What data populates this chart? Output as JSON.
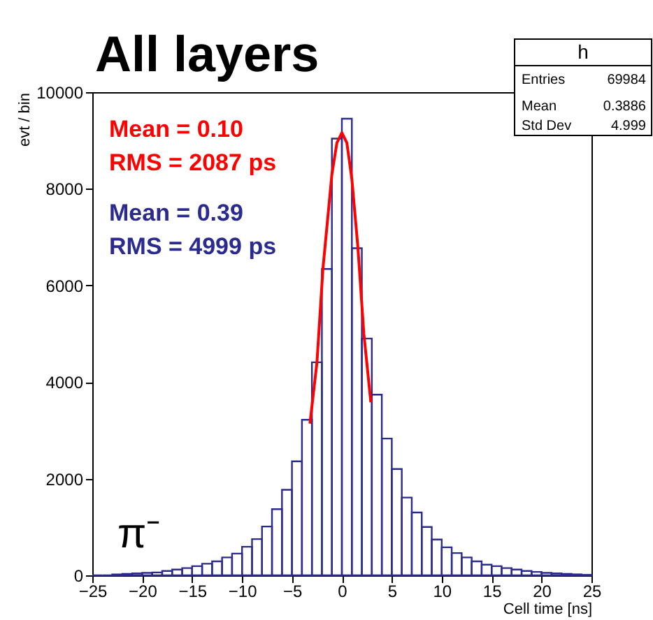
{
  "chart_data": {
    "type": "histogram",
    "title": "All layers",
    "xlabel": "Cell time [ns]",
    "ylabel": "evt / bin",
    "bins": [
      -25,
      -24,
      -23,
      -22,
      -21,
      -20,
      -19,
      -18,
      -17,
      -16,
      -15,
      -14,
      -13,
      -12,
      -11,
      -10,
      -9,
      -8,
      -7,
      -6,
      -5,
      -4,
      -3,
      -2,
      -1,
      0,
      1,
      2,
      3,
      4,
      5,
      6,
      7,
      8,
      9,
      10,
      11,
      12,
      13,
      14,
      15,
      16,
      17,
      18,
      19,
      20,
      21,
      22,
      23,
      24,
      25
    ],
    "series": [
      {
        "color": "#2b2b8f",
        "values": [
          0,
          0,
          20,
          30,
          40,
          50,
          60,
          90,
          120,
          150,
          190,
          240,
          290,
          370,
          450,
          590,
          750,
          1010,
          1370,
          1770,
          2360,
          3220,
          4410,
          6340,
          9040,
          9450,
          6770,
          4900,
          3740,
          2830,
          2200,
          1610,
          1300,
          1000,
          740,
          580,
          460,
          370,
          290,
          220,
          190,
          150,
          120,
          90,
          70,
          50,
          40,
          30,
          20,
          10
        ]
      },
      {
        "type": "line",
        "color": "#ff0000",
        "x": [
          -3.2,
          -2.5,
          -1.9,
          -1.0,
          -0.5,
          0,
          0.5,
          1.0,
          1.6,
          2.2,
          2.9
        ],
        "values": [
          3140,
          4400,
          6340,
          8300,
          8950,
          9160,
          8950,
          8200,
          6800,
          5000,
          3580
        ]
      }
    ],
    "annotations": [
      "Mean = 0.10",
      "RMS = 2087 ps",
      "Mean = 0.39",
      "RMS = 4999 ps",
      "π⁻",
      "h",
      "Entries",
      "69984",
      "Mean",
      "0.3886",
      "Std Dev",
      "4.999"
    ],
    "xlim": [
      -25,
      25
    ],
    "xticks": [
      -25,
      -20,
      -15,
      -10,
      -5,
      0,
      5,
      10,
      15,
      20,
      25
    ],
    "ylim": [
      0,
      10000
    ],
    "yticks": [
      0,
      2000,
      4000,
      6000,
      8000,
      10000
    ],
    "grid": false
  }
}
